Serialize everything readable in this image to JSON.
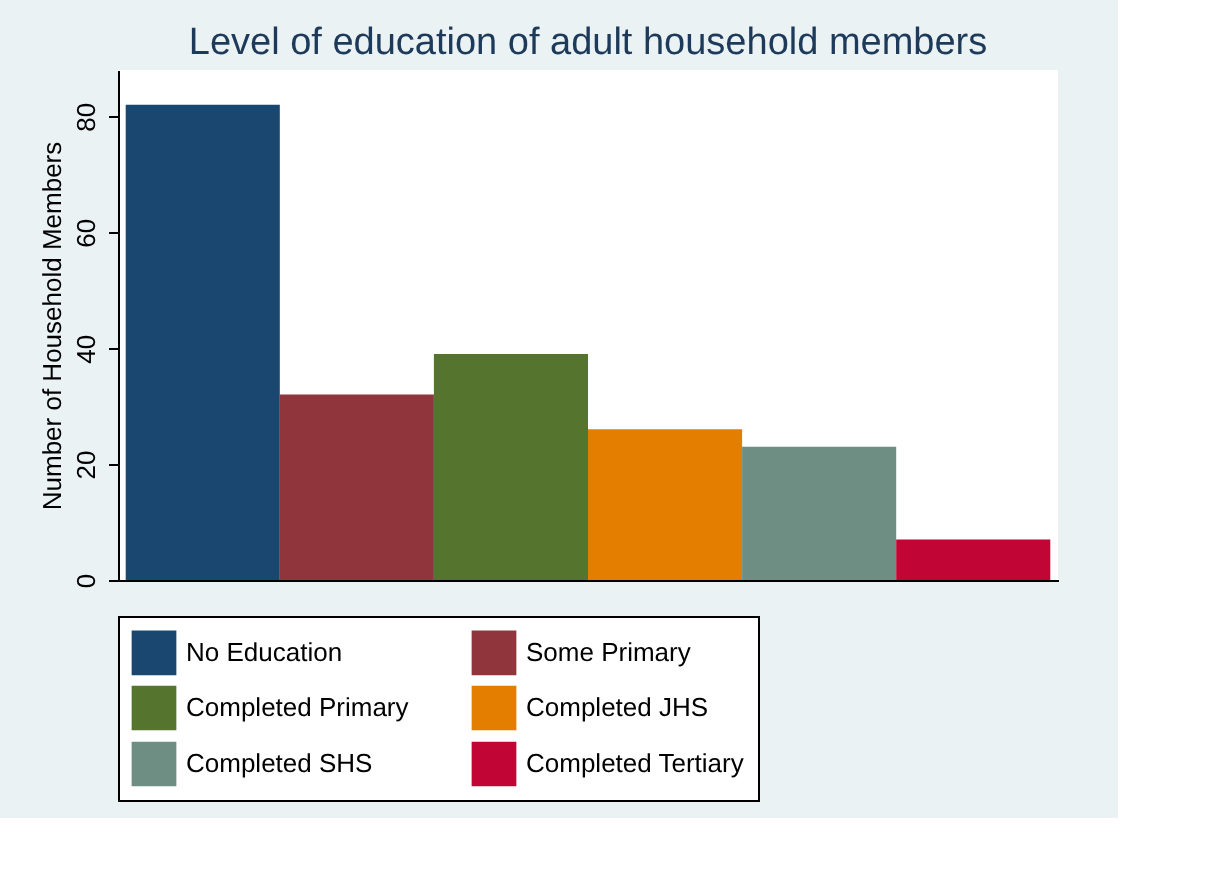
{
  "chart_data": {
    "type": "bar",
    "title": "Level of education of adult household members",
    "ylabel": "Number of Household Members",
    "categories": [
      null
    ],
    "series": [
      {
        "name": "No Education",
        "color": "#1a476f",
        "values": [
          82
        ]
      },
      {
        "name": "Some Primary",
        "color": "#90353b",
        "values": [
          32
        ]
      },
      {
        "name": "Completed Primary",
        "color": "#55752f",
        "values": [
          39
        ]
      },
      {
        "name": "Completed JHS",
        "color": "#e37e00",
        "values": [
          26
        ]
      },
      {
        "name": "Completed SHS",
        "color": "#6e8e84",
        "values": [
          23
        ]
      },
      {
        "name": "Completed Tertiary",
        "color": "#c10534",
        "values": [
          7
        ]
      }
    ],
    "ylim": [
      0,
      88
    ],
    "yticks": [
      0,
      20,
      40,
      60,
      80
    ],
    "grid": false,
    "legend": "bottom",
    "tick_labels": "y"
  }
}
